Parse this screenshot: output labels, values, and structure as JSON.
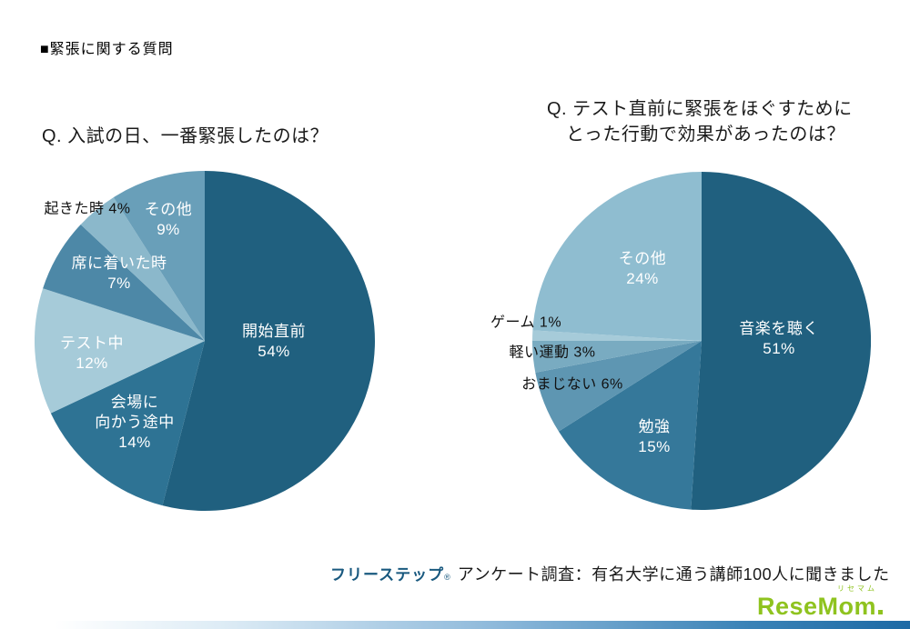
{
  "page": {
    "header": "■緊張に関する質問",
    "footer": {
      "brand": "フリーステップ",
      "reg": "®",
      "caption": "アンケート調査：有名大学に通う講師100人に聞きました"
    },
    "logo": {
      "text": "ReseMom",
      "ruby": "リセマム",
      "color": "#8fc31f"
    },
    "bottom_bar_colors": [
      "#ffffff",
      "#8cb8da",
      "#1d6aa5"
    ]
  },
  "charts": {
    "left": {
      "title": "Q. 入試の日、一番緊張したのは？",
      "label_start": "開始直前\n54%",
      "label_venue": "会場に\n向かう途中\n14%",
      "label_during": "テスト中\n12%",
      "label_seated": "席に着いた時\n7%",
      "label_wake": "起きた時 4%",
      "label_other": "その他\n9%"
    },
    "right": {
      "title_line1": "Q. テスト直前に緊張をほぐすために",
      "title_line2": "とった行動で効果があったのは？",
      "label_music": "音楽を聴く\n51%",
      "label_study": "勉強\n15%",
      "label_charm": "おまじない 6%",
      "label_exercise": "軽い運動 3%",
      "label_game": "ゲーム 1%",
      "label_other": "その他\n24%"
    }
  },
  "chart_data": [
    {
      "type": "pie",
      "title": "Q. 入試の日、一番緊張したのは？",
      "labels": [
        "開始直前",
        "会場に向かう途中",
        "テスト中",
        "席に着いた時",
        "起きた時",
        "その他"
      ],
      "values": [
        54,
        14,
        12,
        7,
        4,
        9
      ],
      "unit": "%",
      "colors": [
        "#20607f",
        "#2e7394",
        "#a6cbd9",
        "#4d88a7",
        "#8bb8cb",
        "#699fb9"
      ],
      "start_angle_deg": 0,
      "direction": "clockwise",
      "legend_position": "none",
      "label_style": "inside-white-except-small-slices"
    },
    {
      "type": "pie",
      "title": "Q. テスト直前に緊張をほぐすためにとった行動で効果があったのは？",
      "labels": [
        "音楽を聴く",
        "勉強",
        "おまじない",
        "軽い運動",
        "ゲーム",
        "その他"
      ],
      "values": [
        51,
        15,
        6,
        3,
        1,
        24
      ],
      "unit": "%",
      "colors": [
        "#20607f",
        "#35789a",
        "#5e96b2",
        "#79abc1",
        "#a6cbd9",
        "#8fbdd0"
      ],
      "start_angle_deg": 0,
      "direction": "clockwise",
      "legend_position": "none",
      "label_style": "inside-white-except-small-slices"
    }
  ]
}
